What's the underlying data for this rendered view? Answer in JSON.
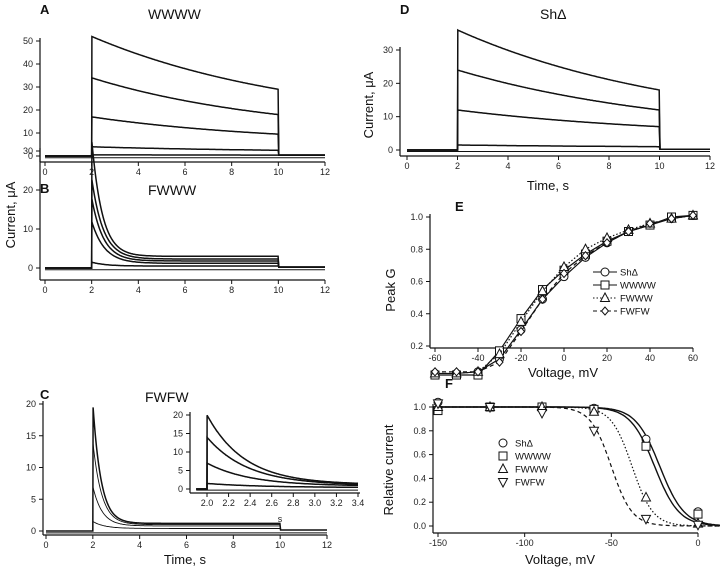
{
  "chart_data": [
    {
      "id": "A",
      "panel_label": "A",
      "type": "line",
      "title": "WWWW",
      "xlabel": "",
      "ylabel": "",
      "xlim": [
        0,
        12
      ],
      "ylim": [
        0,
        50
      ],
      "xticks": [
        0,
        2,
        4,
        6,
        8,
        10,
        12
      ],
      "yticks": [
        0,
        10,
        20,
        30,
        40,
        50
      ],
      "pulse": [
        2,
        10
      ],
      "traces": [
        {
          "peak": 52,
          "end": 29,
          "tau": 9
        },
        {
          "peak": 34,
          "end": 18,
          "tau": 8
        },
        {
          "peak": 17,
          "end": 9.5,
          "tau": 8
        },
        {
          "peak": 4,
          "end": 2.5,
          "tau": 8
        },
        {
          "peak": 0.5,
          "end": 0.4,
          "tau": 8
        }
      ]
    },
    {
      "id": "B",
      "panel_label": "B",
      "type": "line",
      "title": "FWWW",
      "xlabel": "",
      "ylabel": "Current, μA",
      "xlim": [
        0,
        12
      ],
      "ylim": [
        0,
        30
      ],
      "xticks": [
        0,
        2,
        4,
        6,
        8,
        10,
        12
      ],
      "yticks": [
        0,
        10,
        20,
        30
      ],
      "pulse": [
        2,
        10
      ],
      "traces": [
        {
          "peak": 33,
          "end": 3,
          "tau": 0.45
        },
        {
          "peak": 23,
          "end": 2.3,
          "tau": 0.5
        },
        {
          "peak": 18,
          "end": 1.8,
          "tau": 0.5
        },
        {
          "peak": 12,
          "end": 1.2,
          "tau": 0.55
        },
        {
          "peak": 1.5,
          "end": 0.5,
          "tau": 0.6
        }
      ]
    },
    {
      "id": "C",
      "panel_label": "C",
      "type": "line",
      "title": "FWFW",
      "xlabel": "Time, s",
      "ylabel": "",
      "xlim": [
        0,
        12
      ],
      "ylim": [
        0,
        20
      ],
      "xticks": [
        0,
        2,
        4,
        6,
        8,
        10,
        12
      ],
      "yticks": [
        0,
        5,
        10,
        15,
        20
      ],
      "pulse": [
        2,
        10
      ],
      "traces": [
        {
          "peak": 20,
          "end": 1.2,
          "tau": 0.35
        },
        {
          "peak": 14,
          "end": 1,
          "tau": 0.38
        },
        {
          "peak": 7,
          "end": 0.8,
          "tau": 0.4
        },
        {
          "peak": 1.5,
          "end": 0.4,
          "tau": 0.5
        }
      ]
    },
    {
      "id": "C-inset",
      "type": "line",
      "xlabel": "s",
      "xlim": [
        1.9,
        3.4
      ],
      "ylim": [
        0,
        20
      ],
      "xticks": [
        2.0,
        2.2,
        2.4,
        2.6,
        2.8,
        3.0,
        3.2,
        3.4
      ],
      "yticks": [
        0,
        5,
        10,
        15,
        20
      ],
      "pulse": [
        2,
        10
      ],
      "traces": [
        {
          "peak": 20,
          "end": 1.2,
          "tau": 0.35
        },
        {
          "peak": 14,
          "end": 1,
          "tau": 0.38
        },
        {
          "peak": 7,
          "end": 0.8,
          "tau": 0.4
        },
        {
          "peak": 1.5,
          "end": 0.4,
          "tau": 0.5
        }
      ]
    },
    {
      "id": "D",
      "panel_label": "D",
      "type": "line",
      "title": "ShΔ",
      "xlabel": "Time, s",
      "ylabel": "Current, μA",
      "xlim": [
        0,
        12
      ],
      "ylim": [
        0,
        30
      ],
      "xticks": [
        0,
        2,
        4,
        6,
        8,
        10,
        12
      ],
      "yticks": [
        0,
        10,
        20,
        30
      ],
      "pulse": [
        2,
        10
      ],
      "traces": [
        {
          "peak": 36,
          "end": 18,
          "tau": 9
        },
        {
          "peak": 24,
          "end": 12,
          "tau": 9
        },
        {
          "peak": 12,
          "end": 7,
          "tau": 9
        },
        {
          "peak": 1.5,
          "end": 1,
          "tau": 9
        }
      ]
    },
    {
      "id": "E",
      "panel_label": "E",
      "type": "line",
      "xlabel": "Voltage, mV",
      "ylabel": "Peak G",
      "xlim": [
        -60,
        60
      ],
      "ylim": [
        0,
        1.0
      ],
      "xticks": [
        -60,
        -40,
        -20,
        0,
        20,
        40,
        60
      ],
      "yticks": [
        0.2,
        0.4,
        0.6,
        0.8,
        1.0
      ],
      "legend": "center-right",
      "x": [
        -60,
        -50,
        -40,
        -30,
        -20,
        -10,
        0,
        10,
        20,
        30,
        40,
        50,
        60
      ],
      "series": [
        {
          "name": "ShΔ",
          "marker": "circle",
          "line": "solid",
          "values": [
            0.03,
            0.03,
            0.04,
            0.12,
            0.3,
            0.49,
            0.63,
            0.75,
            0.84,
            0.91,
            0.95,
            0.99,
            1.01
          ]
        },
        {
          "name": "WWWW",
          "marker": "square",
          "line": "solid",
          "values": [
            0.02,
            0.02,
            0.02,
            0.17,
            0.37,
            0.55,
            0.67,
            0.77,
            0.85,
            0.91,
            0.95,
            1.0,
            1.01
          ]
        },
        {
          "name": "FWWW",
          "marker": "triangle-up",
          "line": "dotted",
          "values": [
            0.03,
            0.03,
            0.04,
            0.15,
            0.35,
            0.54,
            0.69,
            0.8,
            0.87,
            0.92,
            0.96,
            0.99,
            1.01
          ]
        },
        {
          "name": "FWFW",
          "marker": "diamond",
          "line": "dashed",
          "values": [
            0.04,
            0.04,
            0.04,
            0.1,
            0.29,
            0.49,
            0.65,
            0.76,
            0.84,
            0.91,
            0.96,
            0.99,
            1.01
          ]
        }
      ]
    },
    {
      "id": "F",
      "panel_label": "F",
      "type": "scatter",
      "xlabel": "Voltage, mV",
      "ylabel": "Relative current",
      "xlim": [
        -155,
        40
      ],
      "ylim": [
        0,
        1.0
      ],
      "xticks": [
        -150,
        -100,
        -50,
        0
      ],
      "yticks": [
        0.0,
        0.2,
        0.4,
        0.6,
        0.8,
        1.0
      ],
      "legend": "center-left",
      "x": [
        -150,
        -120,
        -90,
        -60,
        -30,
        0,
        30
      ],
      "series": [
        {
          "name": "ShΔ",
          "marker": "circle",
          "fit": "solid",
          "v_half": -22,
          "slope": 7,
          "values": [
            1.04,
            1.0,
            1.0,
            0.99,
            0.73,
            0.12,
            0.01
          ]
        },
        {
          "name": "WWWW",
          "marker": "square",
          "fit": "solid",
          "v_half": -25,
          "slope": 7,
          "values": [
            0.97,
            1.0,
            1.0,
            0.98,
            0.67,
            0.1,
            0.0
          ]
        },
        {
          "name": "FWWW",
          "marker": "triangle-up",
          "fit": "dotted",
          "v_half": -38,
          "slope": 6,
          "values": [
            1.0,
            1.0,
            1.0,
            0.96,
            0.24,
            0.02,
            0.01
          ]
        },
        {
          "name": "FWFW",
          "marker": "triangle-down",
          "fit": "dashed",
          "v_half": -50,
          "slope": 6,
          "values": [
            1.03,
            1.0,
            0.95,
            0.8,
            0.06,
            0.01,
            0.0
          ]
        }
      ]
    }
  ]
}
